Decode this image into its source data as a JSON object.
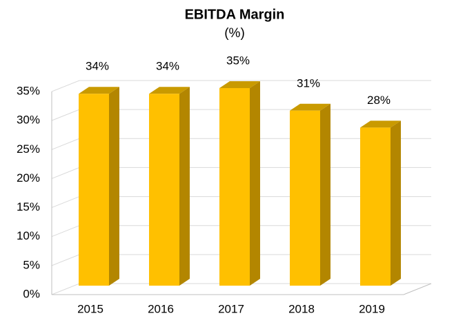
{
  "chart_data": {
    "type": "bar3d",
    "title": "EBITDA Margin",
    "subtitle": "(%)",
    "categories": [
      "2015",
      "2016",
      "2017",
      "2018",
      "2019"
    ],
    "values": [
      34,
      34,
      35,
      31,
      28
    ],
    "value_labels": [
      "34%",
      "34%",
      "35%",
      "31%",
      "28%"
    ],
    "color": "#ffc000",
    "ylim": [
      0,
      35
    ],
    "yticks": [
      {
        "value": 0,
        "label": "0%"
      },
      {
        "value": 5,
        "label": "5%"
      },
      {
        "value": 10,
        "label": "10%"
      },
      {
        "value": 15,
        "label": "15%"
      },
      {
        "value": 20,
        "label": "20%"
      },
      {
        "value": 25,
        "label": "25%"
      },
      {
        "value": 30,
        "label": "30%"
      },
      {
        "value": 35,
        "label": "35%"
      }
    ],
    "grid": true
  }
}
